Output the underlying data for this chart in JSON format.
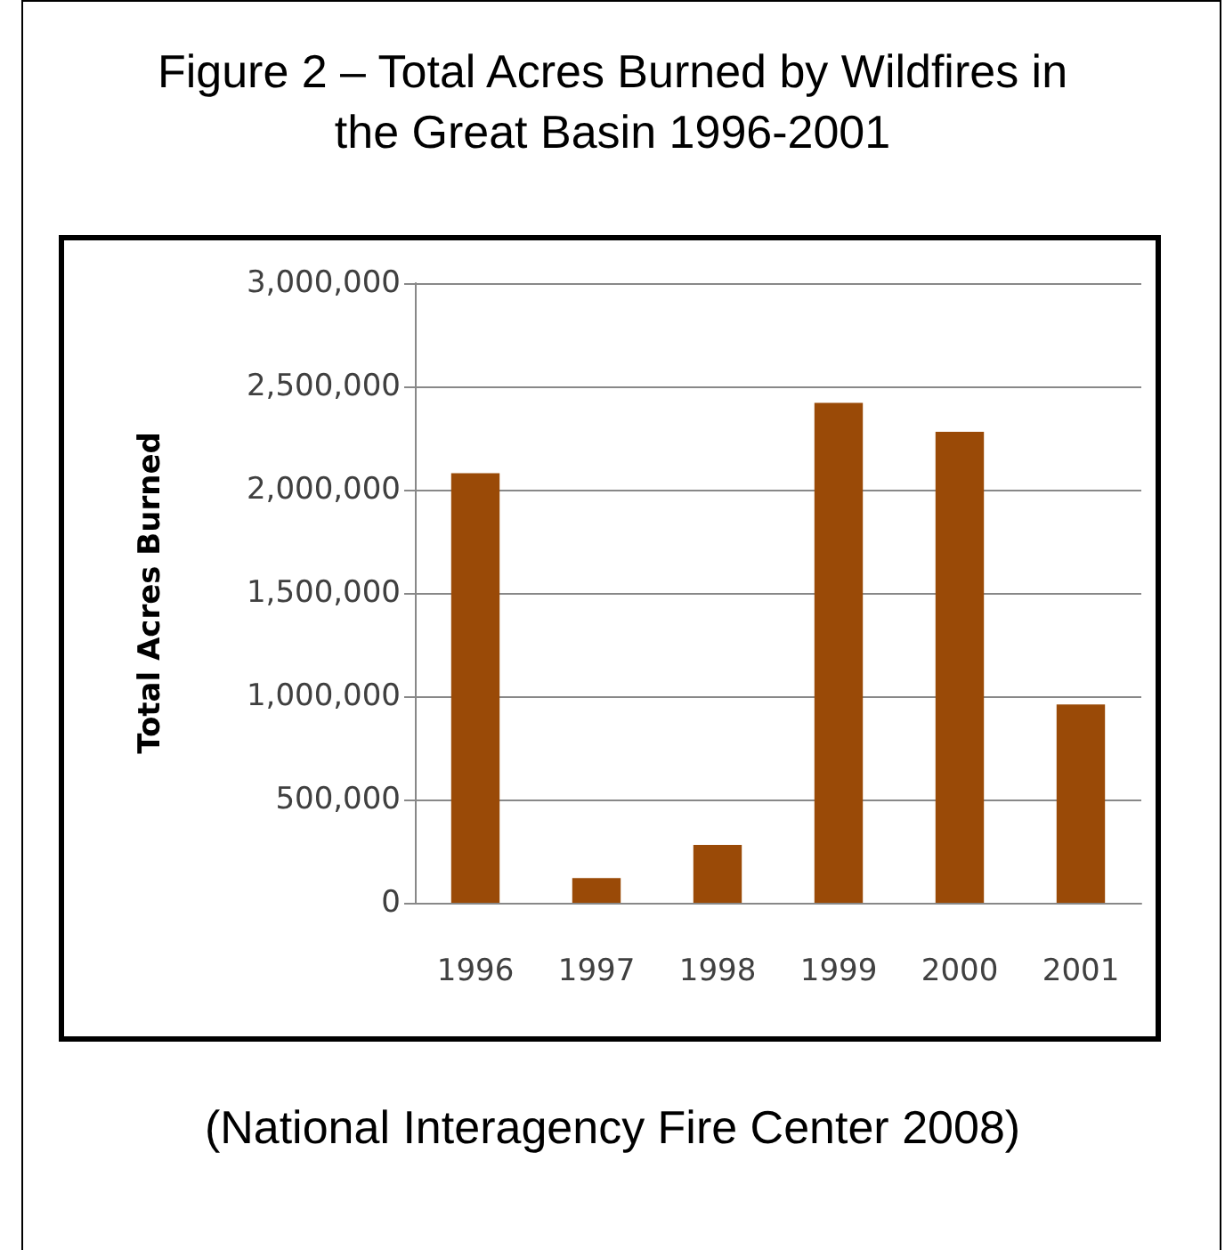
{
  "chart_data": {
    "type": "bar",
    "title": "Figure 2 – Total Acres Burned by Wildfires in\nthe Great Basin 1996-2001",
    "ylabel": "Total Acres Burned",
    "annotations": [
      "(National Interagency Fire Center 2008)"
    ],
    "categories": [
      "1996",
      "1997",
      "1998",
      "1999",
      "2000",
      "2001"
    ],
    "values": [
      2080000,
      120000,
      280000,
      2420000,
      2280000,
      960000
    ],
    "color": "#9a4a07",
    "ylim": [
      0,
      3000000
    ],
    "yticks": [
      0,
      {
        "value": 500000,
        "label": "500,000"
      },
      {
        "value": 1000000,
        "label": "1,000,000"
      },
      {
        "value": 1500000,
        "label": "1,500,000"
      },
      {
        "value": 2000000,
        "label": "2,000,000"
      },
      {
        "value": 2500000,
        "label": "2,500,000"
      },
      {
        "value": 3000000,
        "label": "3,000,000"
      }
    ],
    "grid": "y"
  }
}
